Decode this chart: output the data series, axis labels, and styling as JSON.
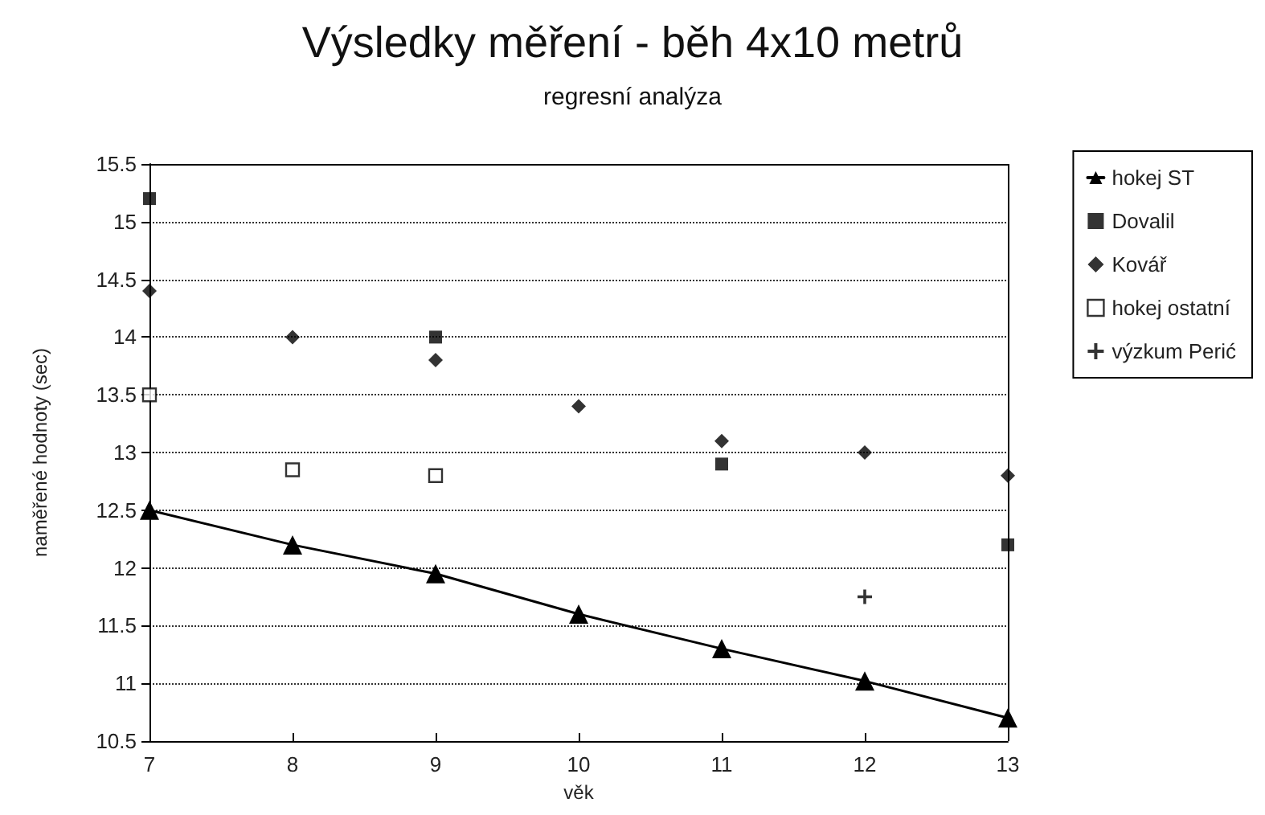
{
  "chart_data": {
    "type": "scatter",
    "title": "Výsledky měření - běh 4x10 metrů",
    "subtitle": "regresní analýza",
    "xlabel": "věk",
    "ylabel": "naměřené hodnoty (sec)",
    "x": [
      7,
      8,
      9,
      10,
      11,
      12,
      13
    ],
    "series": [
      {
        "name": "hokej ST",
        "type": "line",
        "color": "#000000",
        "marker": "triangle",
        "values": [
          12.5,
          12.2,
          11.95,
          11.6,
          11.3,
          11.02,
          10.7
        ]
      },
      {
        "name": "Dovalil",
        "color": "#000000",
        "marker": "square",
        "values": [
          15.2,
          null,
          14.0,
          null,
          12.9,
          null,
          12.2
        ]
      },
      {
        "name": "Kovář",
        "color": "#000000",
        "marker": "diamond",
        "values": [
          14.4,
          14.0,
          13.8,
          13.4,
          13.1,
          13.0,
          12.8
        ]
      },
      {
        "name": "hokej ostatní",
        "color": "#ffffff",
        "marker": "square",
        "values": [
          13.5,
          12.85,
          12.8,
          null,
          null,
          null,
          null
        ]
      },
      {
        "name": "výzkum Perić",
        "color": "#000000",
        "marker": "cross",
        "values": [
          null,
          null,
          null,
          null,
          null,
          11.75,
          null
        ]
      }
    ],
    "xlim": [
      7,
      13
    ],
    "xticks": [
      7,
      8,
      9,
      10,
      11,
      12,
      13
    ],
    "ylim": [
      10.5,
      15.5
    ],
    "yticks": [
      10.5,
      11,
      11.5,
      12,
      12.5,
      13,
      13.5,
      14,
      14.5,
      15,
      15.5
    ],
    "grid": "y",
    "legend": "right"
  }
}
